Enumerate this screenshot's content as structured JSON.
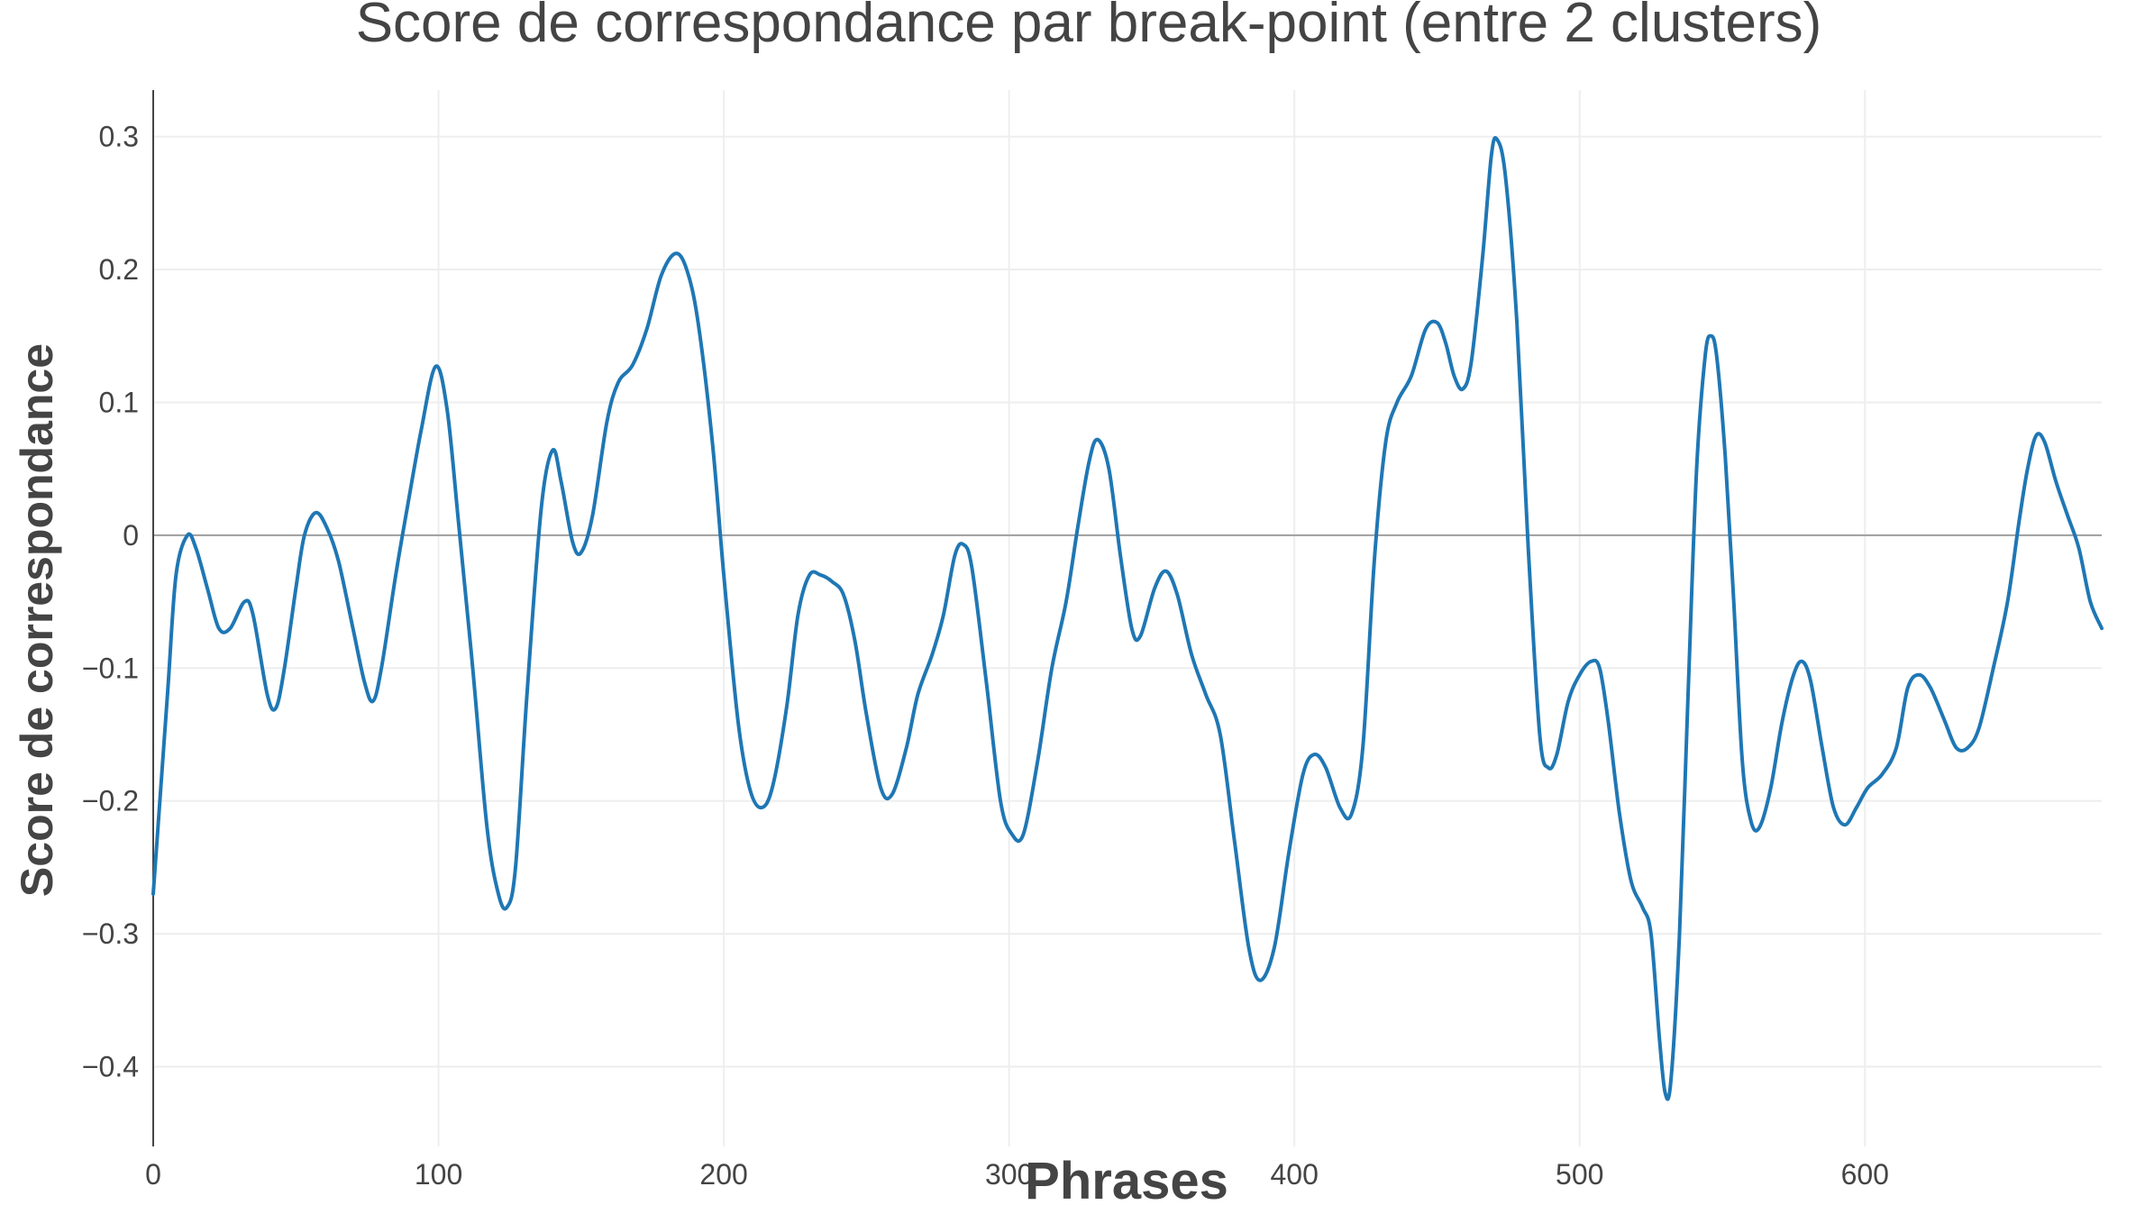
{
  "chart_data": {
    "type": "line",
    "title": "Score de correspondance par break-point (entre 2 clusters)",
    "xlabel": "Phrases",
    "ylabel": "Score de correspondance",
    "xlim": [
      0,
      683
    ],
    "ylim": [
      -0.46,
      0.335
    ],
    "grid": true,
    "zero_line": true,
    "x_ticks": [
      {
        "value": 0,
        "label": "0"
      },
      {
        "value": 100,
        "label": "100"
      },
      {
        "value": 200,
        "label": "200"
      },
      {
        "value": 300,
        "label": "300"
      },
      {
        "value": 400,
        "label": "400"
      },
      {
        "value": 500,
        "label": "500"
      },
      {
        "value": 600,
        "label": "600"
      }
    ],
    "y_ticks": [
      {
        "value": 0.3,
        "label": "0.3"
      },
      {
        "value": 0.2,
        "label": "0.2"
      },
      {
        "value": 0.1,
        "label": "0.1"
      },
      {
        "value": 0,
        "label": "0"
      },
      {
        "value": -0.1,
        "label": "−0.1"
      },
      {
        "value": -0.2,
        "label": "−0.2"
      },
      {
        "value": -0.3,
        "label": "−0.3"
      },
      {
        "value": -0.4,
        "label": "−0.4"
      }
    ],
    "series": [
      {
        "color": "#1f77b4",
        "points": [
          [
            0,
            -0.27
          ],
          [
            5,
            -0.12
          ],
          [
            8,
            -0.03
          ],
          [
            12,
            0.0
          ],
          [
            15,
            -0.01
          ],
          [
            19,
            -0.04
          ],
          [
            23,
            -0.07
          ],
          [
            27,
            -0.07
          ],
          [
            32,
            -0.05
          ],
          [
            35,
            -0.06
          ],
          [
            40,
            -0.12
          ],
          [
            43,
            -0.13
          ],
          [
            46,
            -0.1
          ],
          [
            50,
            -0.04
          ],
          [
            53,
            0.0
          ],
          [
            57,
            0.017
          ],
          [
            61,
            0.005
          ],
          [
            65,
            -0.02
          ],
          [
            70,
            -0.07
          ],
          [
            74,
            -0.11
          ],
          [
            77,
            -0.125
          ],
          [
            80,
            -0.1
          ],
          [
            85,
            -0.03
          ],
          [
            89,
            0.02
          ],
          [
            94,
            0.08
          ],
          [
            99,
            0.127
          ],
          [
            103,
            0.095
          ],
          [
            107,
            0.01
          ],
          [
            112,
            -0.1
          ],
          [
            117,
            -0.22
          ],
          [
            121,
            -0.27
          ],
          [
            124,
            -0.28
          ],
          [
            127,
            -0.25
          ],
          [
            131,
            -0.12
          ],
          [
            136,
            0.02
          ],
          [
            140,
            0.064
          ],
          [
            143,
            0.04
          ],
          [
            147,
            -0.005
          ],
          [
            150,
            -0.013
          ],
          [
            154,
            0.015
          ],
          [
            159,
            0.085
          ],
          [
            163,
            0.115
          ],
          [
            168,
            0.128
          ],
          [
            173,
            0.155
          ],
          [
            178,
            0.195
          ],
          [
            183,
            0.212
          ],
          [
            187,
            0.2
          ],
          [
            191,
            0.16
          ],
          [
            196,
            0.07
          ],
          [
            200,
            -0.03
          ],
          [
            205,
            -0.14
          ],
          [
            209,
            -0.19
          ],
          [
            213,
            -0.205
          ],
          [
            217,
            -0.19
          ],
          [
            222,
            -0.13
          ],
          [
            226,
            -0.06
          ],
          [
            230,
            -0.03
          ],
          [
            234,
            -0.03
          ],
          [
            238,
            -0.035
          ],
          [
            242,
            -0.045
          ],
          [
            246,
            -0.08
          ],
          [
            250,
            -0.135
          ],
          [
            255,
            -0.19
          ],
          [
            259,
            -0.195
          ],
          [
            264,
            -0.16
          ],
          [
            268,
            -0.12
          ],
          [
            273,
            -0.09
          ],
          [
            277,
            -0.06
          ],
          [
            281,
            -0.015
          ],
          [
            284,
            -0.007
          ],
          [
            287,
            -0.025
          ],
          [
            292,
            -0.11
          ],
          [
            297,
            -0.2
          ],
          [
            301,
            -0.225
          ],
          [
            305,
            -0.225
          ],
          [
            310,
            -0.17
          ],
          [
            315,
            -0.1
          ],
          [
            320,
            -0.05
          ],
          [
            324,
            0.005
          ],
          [
            328,
            0.055
          ],
          [
            331,
            0.072
          ],
          [
            335,
            0.05
          ],
          [
            339,
            -0.015
          ],
          [
            343,
            -0.07
          ],
          [
            346,
            -0.076
          ],
          [
            351,
            -0.04
          ],
          [
            355,
            -0.027
          ],
          [
            359,
            -0.045
          ],
          [
            364,
            -0.09
          ],
          [
            369,
            -0.12
          ],
          [
            374,
            -0.15
          ],
          [
            379,
            -0.23
          ],
          [
            384,
            -0.31
          ],
          [
            388,
            -0.335
          ],
          [
            393,
            -0.31
          ],
          [
            398,
            -0.24
          ],
          [
            403,
            -0.18
          ],
          [
            407,
            -0.165
          ],
          [
            411,
            -0.175
          ],
          [
            416,
            -0.205
          ],
          [
            420,
            -0.21
          ],
          [
            424,
            -0.16
          ],
          [
            428,
            -0.02
          ],
          [
            432,
            0.07
          ],
          [
            436,
            0.1
          ],
          [
            441,
            0.12
          ],
          [
            446,
            0.155
          ],
          [
            450,
            0.16
          ],
          [
            453,
            0.145
          ],
          [
            456,
            0.12
          ],
          [
            459,
            0.11
          ],
          [
            462,
            0.13
          ],
          [
            466,
            0.21
          ],
          [
            469,
            0.285
          ],
          [
            471,
            0.298
          ],
          [
            474,
            0.27
          ],
          [
            478,
            0.16
          ],
          [
            482,
            -0.01
          ],
          [
            486,
            -0.15
          ],
          [
            489,
            -0.175
          ],
          [
            492,
            -0.165
          ],
          [
            496,
            -0.125
          ],
          [
            500,
            -0.105
          ],
          [
            504,
            -0.095
          ],
          [
            507,
            -0.1
          ],
          [
            510,
            -0.14
          ],
          [
            514,
            -0.21
          ],
          [
            518,
            -0.26
          ],
          [
            522,
            -0.28
          ],
          [
            525,
            -0.3
          ],
          [
            528,
            -0.38
          ],
          [
            530,
            -0.42
          ],
          [
            532,
            -0.41
          ],
          [
            535,
            -0.3
          ],
          [
            538,
            -0.12
          ],
          [
            541,
            0.05
          ],
          [
            544,
            0.135
          ],
          [
            546,
            0.15
          ],
          [
            548,
            0.135
          ],
          [
            551,
            0.06
          ],
          [
            554,
            -0.05
          ],
          [
            557,
            -0.17
          ],
          [
            560,
            -0.215
          ],
          [
            563,
            -0.22
          ],
          [
            567,
            -0.19
          ],
          [
            571,
            -0.14
          ],
          [
            575,
            -0.105
          ],
          [
            578,
            -0.095
          ],
          [
            581,
            -0.11
          ],
          [
            585,
            -0.16
          ],
          [
            589,
            -0.205
          ],
          [
            593,
            -0.218
          ],
          [
            597,
            -0.205
          ],
          [
            601,
            -0.19
          ],
          [
            606,
            -0.18
          ],
          [
            611,
            -0.16
          ],
          [
            615,
            -0.115
          ],
          [
            619,
            -0.105
          ],
          [
            623,
            -0.115
          ],
          [
            628,
            -0.14
          ],
          [
            632,
            -0.16
          ],
          [
            636,
            -0.16
          ],
          [
            640,
            -0.145
          ],
          [
            645,
            -0.1
          ],
          [
            650,
            -0.05
          ],
          [
            654,
            0.01
          ],
          [
            657,
            0.05
          ],
          [
            660,
            0.075
          ],
          [
            663,
            0.07
          ],
          [
            667,
            0.04
          ],
          [
            671,
            0.015
          ],
          [
            675,
            -0.01
          ],
          [
            679,
            -0.05
          ],
          [
            683,
            -0.07
          ]
        ]
      }
    ]
  }
}
